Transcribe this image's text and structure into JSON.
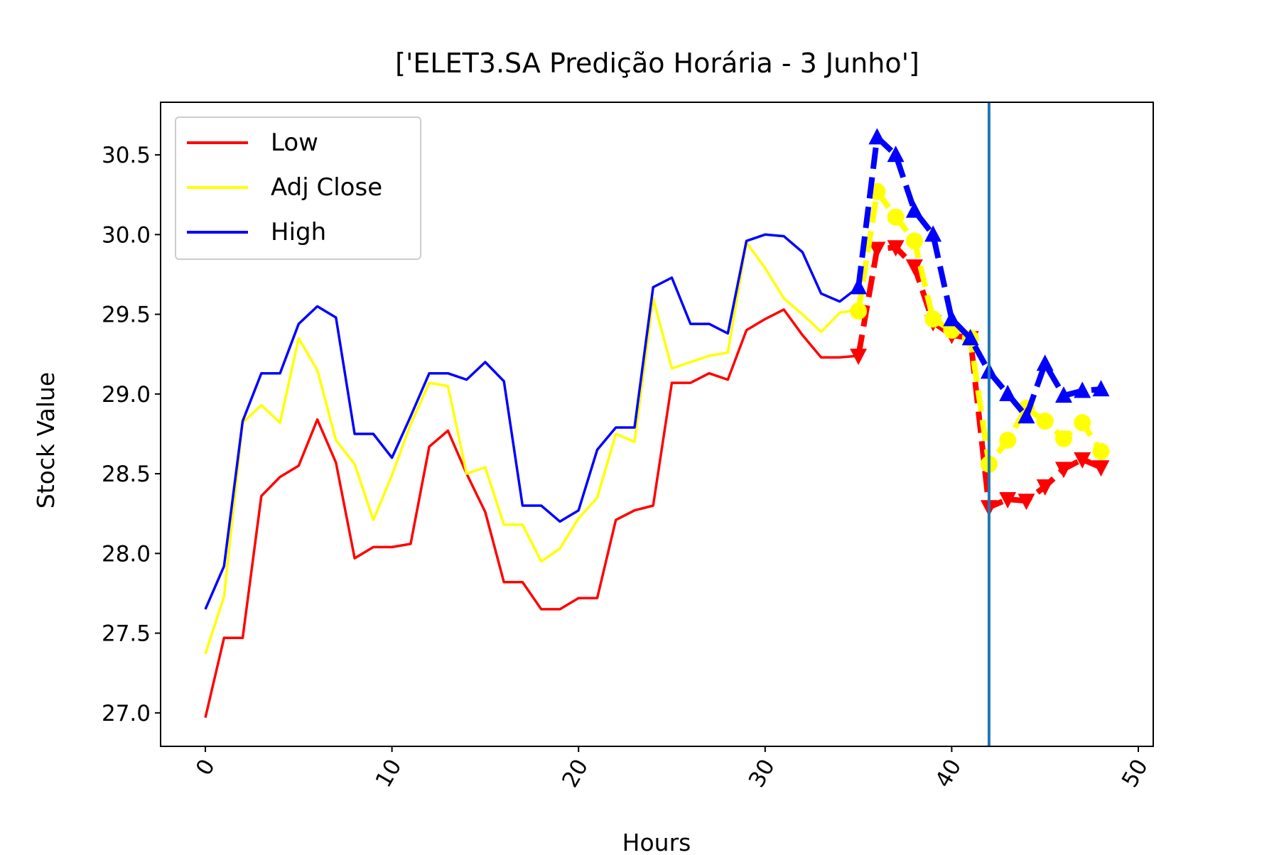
{
  "chart_data": {
    "type": "line",
    "title": "['ELET3.SA Predição Horária - 3 Junho']",
    "xlabel": "Hours",
    "ylabel": "Stock Value",
    "xlim": [
      -2.4,
      50.8
    ],
    "ylim": [
      26.79,
      30.83
    ],
    "x_ticks": [
      0,
      10,
      20,
      30,
      40,
      50
    ],
    "y_ticks": [
      27.0,
      27.5,
      28.0,
      28.5,
      29.0,
      29.5,
      30.0,
      30.5
    ],
    "grid": false,
    "legend_position": "upper left",
    "vertical_line": {
      "x": 42,
      "color": "#1f77b4"
    },
    "series": [
      {
        "name": "Low",
        "color": "#ff0000",
        "x": [
          0,
          1,
          2,
          3,
          4,
          5,
          6,
          7,
          8,
          9,
          10,
          11,
          12,
          13,
          14,
          15,
          16,
          17,
          18,
          19,
          20,
          21,
          22,
          23,
          24,
          25,
          26,
          27,
          28,
          29,
          30,
          31,
          32,
          33,
          34,
          35
        ],
        "values": [
          26.97,
          27.47,
          27.47,
          28.36,
          28.48,
          28.55,
          28.84,
          28.57,
          27.97,
          28.04,
          28.04,
          28.06,
          28.67,
          28.77,
          28.5,
          28.26,
          27.82,
          27.82,
          27.65,
          27.65,
          27.72,
          27.72,
          28.21,
          28.27,
          28.3,
          29.07,
          29.07,
          29.13,
          29.09,
          29.4,
          29.47,
          29.53,
          29.37,
          29.23,
          29.23,
          29.24
        ]
      },
      {
        "name": "Adj Close",
        "color": "#ffff00",
        "x": [
          0,
          1,
          2,
          3,
          4,
          5,
          6,
          7,
          8,
          9,
          10,
          11,
          12,
          13,
          14,
          15,
          16,
          17,
          18,
          19,
          20,
          21,
          22,
          23,
          24,
          25,
          26,
          27,
          28,
          29,
          30,
          31,
          32,
          33,
          34,
          35
        ],
        "values": [
          27.37,
          27.73,
          28.82,
          28.93,
          28.82,
          29.35,
          29.15,
          28.71,
          28.56,
          28.21,
          28.49,
          28.81,
          29.07,
          29.05,
          28.5,
          28.54,
          28.18,
          28.18,
          27.95,
          28.03,
          28.22,
          28.35,
          28.75,
          28.7,
          29.6,
          29.16,
          29.2,
          29.24,
          29.26,
          29.95,
          29.79,
          29.6,
          29.5,
          29.39,
          29.51,
          29.53
        ]
      },
      {
        "name": "High",
        "color": "#0000ff",
        "x": [
          0,
          1,
          2,
          3,
          4,
          5,
          6,
          7,
          8,
          9,
          10,
          11,
          12,
          13,
          14,
          15,
          16,
          17,
          18,
          19,
          20,
          21,
          22,
          23,
          24,
          25,
          26,
          27,
          28,
          29,
          30,
          31,
          32,
          33,
          34,
          35
        ],
        "values": [
          27.65,
          27.92,
          28.83,
          29.13,
          29.13,
          29.44,
          29.55,
          29.48,
          28.75,
          28.75,
          28.6,
          28.86,
          29.13,
          29.13,
          29.09,
          29.2,
          29.08,
          28.3,
          28.3,
          28.2,
          28.27,
          28.65,
          28.79,
          28.79,
          29.67,
          29.73,
          29.44,
          29.44,
          29.38,
          29.96,
          30.0,
          29.99,
          29.89,
          29.63,
          29.58,
          29.67
        ]
      }
    ],
    "prediction_series": [
      {
        "base": "Low",
        "color": "#ff0000",
        "marker": "triangle-down",
        "x": [
          35,
          36,
          37,
          38,
          39,
          40,
          41,
          42,
          43,
          44,
          45,
          46,
          47,
          48
        ],
        "values": [
          29.24,
          29.91,
          29.92,
          29.8,
          29.45,
          29.37,
          29.35,
          28.29,
          28.34,
          28.33,
          28.42,
          28.53,
          28.59,
          28.54
        ]
      },
      {
        "base": "Adj Close",
        "color": "#ffff00",
        "marker": "circle",
        "x": [
          35,
          36,
          37,
          38,
          39,
          40,
          41,
          42,
          43,
          44,
          45,
          46,
          47,
          48
        ],
        "values": [
          29.52,
          30.27,
          30.11,
          29.96,
          29.47,
          29.4,
          29.35,
          28.56,
          28.71,
          28.91,
          28.83,
          28.72,
          28.82,
          28.64
        ]
      },
      {
        "base": "High",
        "color": "#0000ff",
        "marker": "triangle-up",
        "x": [
          35,
          36,
          37,
          38,
          39,
          40,
          41,
          42,
          43,
          44,
          45,
          46,
          47,
          48
        ],
        "values": [
          29.67,
          30.61,
          30.5,
          30.15,
          30.0,
          29.47,
          29.35,
          29.14,
          29.0,
          28.86,
          29.19,
          28.99,
          29.02,
          29.03
        ]
      }
    ]
  }
}
